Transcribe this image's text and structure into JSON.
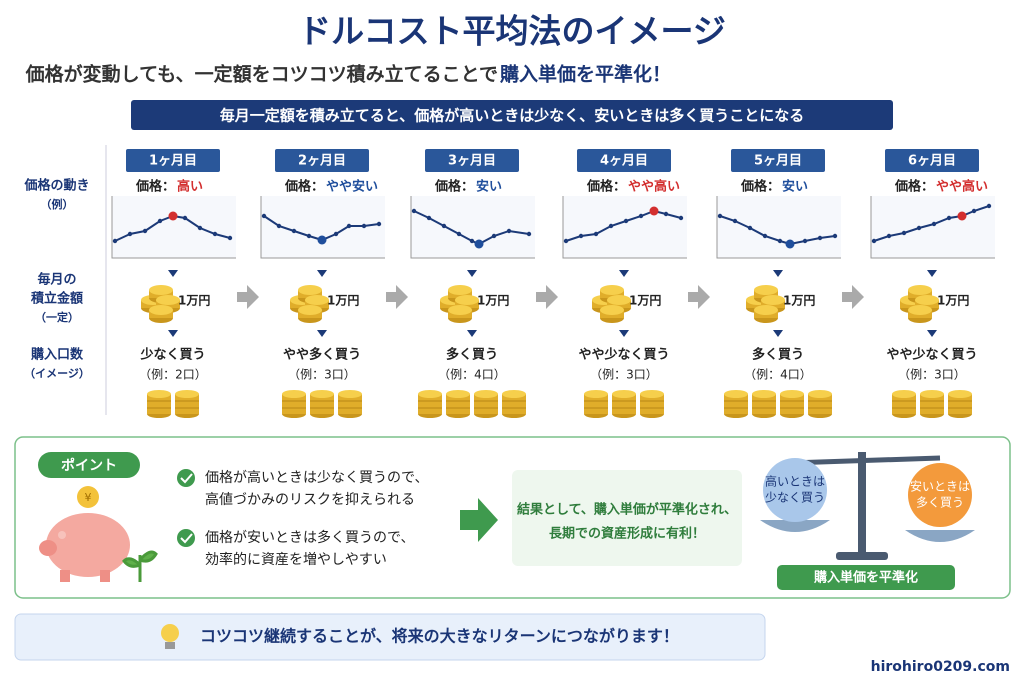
{
  "header": {
    "title": "ドルコスト平均法のイメージ",
    "subtitle_plain": "価格が変動しても、一定額をコツコツ積み立てることで",
    "subtitle_emph": "購入単価を平準化！",
    "banner": "毎月一定額を積み立てると、価格が高いときは少なく、安いときは多く買うことになる"
  },
  "row_labels": {
    "price": [
      "価格の動き",
      "（例）"
    ],
    "amount": [
      "毎月の",
      "積立金額",
      "（一定）"
    ],
    "units": [
      "購入口数",
      "（イメージ）"
    ]
  },
  "months": [
    {
      "label": "1ヶ月目",
      "price_prefix": "価格：",
      "price": "高い",
      "price_color": "#d32f2f",
      "amount": "1万円",
      "buy": "少なく買う",
      "example": "（例：2口）"
    },
    {
      "label": "2ヶ月目",
      "price_prefix": "価格：",
      "price": "やや安い",
      "price_color": "#1f4e9c",
      "amount": "1万円",
      "buy": "やや多く買う",
      "example": "（例：3口）"
    },
    {
      "label": "3ヶ月目",
      "price_prefix": "価格：",
      "price": "安い",
      "price_color": "#1f4e9c",
      "amount": "1万円",
      "buy": "多く買う",
      "example": "（例：4口）"
    },
    {
      "label": "4ヶ月目",
      "price_prefix": "価格：",
      "price": "やや高い",
      "price_color": "#d32f2f",
      "amount": "1万円",
      "buy": "やや少なく買う",
      "example": "（例：3口）"
    },
    {
      "label": "5ヶ月目",
      "price_prefix": "価格：",
      "price": "安い",
      "price_color": "#1f4e9c",
      "amount": "1万円",
      "buy": "多く買う",
      "example": "（例：4口）"
    },
    {
      "label": "6ヶ月目",
      "price_prefix": "価格：",
      "price": "やや高い",
      "price_color": "#d32f2f",
      "amount": "1万円",
      "buy": "やや少なく買う",
      "example": "（例：3口）"
    }
  ],
  "point": {
    "badge": "ポイント",
    "items": [
      [
        "価格が高いときは少なく買うので、",
        "高値づかみのリスクを抑えられる"
      ],
      [
        "価格が安いときは多く買うので、",
        "効率的に資産を増やしやすい"
      ]
    ],
    "result": [
      "結果として、購入単価が平準化され、",
      "長期での資産形成に有利！"
    ],
    "scale_left": [
      "高いときは",
      "少なく買う"
    ],
    "scale_right": [
      "安いときは",
      "多く買う"
    ],
    "scale_caption": "購入単価を平準化"
  },
  "footer": {
    "message": "コツコツ継続することが、将来の大きなリターンにつながります！",
    "site": "hirohiro0209.com"
  }
}
